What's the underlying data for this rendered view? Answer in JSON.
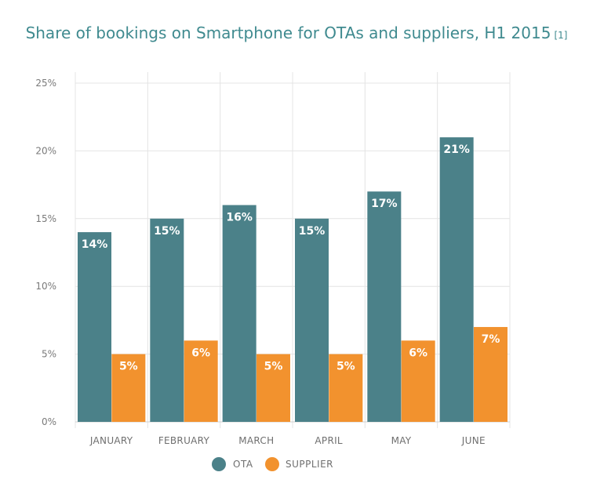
{
  "header": {
    "title": "Share of bookings on Smartphone for OTAs and suppliers, H1 2015",
    "ref": "[1]"
  },
  "colors": {
    "OTA": "#4b8189",
    "SUPPLIER": "#f2922e",
    "grid": "#e4e4e4",
    "axis": "#cfcfcf"
  },
  "chart_data": {
    "type": "bar",
    "title": "Share of bookings on Smartphone for OTAs and suppliers, H1 2015",
    "xlabel": "",
    "ylabel": "",
    "categories": [
      "JANUARY",
      "FEBRUARY",
      "MARCH",
      "APRIL",
      "MAY",
      "JUNE"
    ],
    "series": [
      {
        "name": "OTA",
        "values": [
          14,
          15,
          16,
          15,
          17,
          21
        ],
        "labels": [
          "14%",
          "15%",
          "16%",
          "15%",
          "17%",
          "21%"
        ]
      },
      {
        "name": "SUPPLIER",
        "values": [
          5,
          6,
          5,
          5,
          6,
          7
        ],
        "labels": [
          "5%",
          "6%",
          "5%",
          "5%",
          "6%",
          "7%"
        ]
      }
    ],
    "ylim": [
      0,
      25
    ],
    "yticks": [
      0,
      5,
      10,
      15,
      20,
      25
    ],
    "ytick_labels": [
      "0%",
      "5%",
      "10%",
      "15%",
      "20%",
      "25%"
    ],
    "grid": true,
    "legend": {
      "placement": "bottom-center",
      "entries": [
        "OTA",
        "SUPPLIER"
      ]
    }
  }
}
